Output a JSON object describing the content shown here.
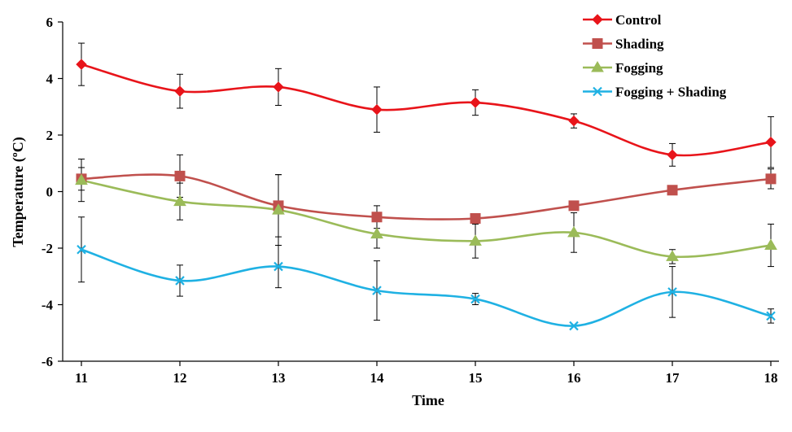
{
  "chart_data": {
    "type": "line",
    "title": "",
    "xlabel": "Time",
    "ylabel": "Temperature (ºC)",
    "x": [
      11,
      12,
      13,
      14,
      15,
      16,
      17,
      18
    ],
    "xlim": [
      11,
      18
    ],
    "ylim": [
      -6,
      6
    ],
    "yticks": [
      6,
      4,
      2,
      0,
      -2,
      -4,
      -6
    ],
    "xticks": [
      11,
      12,
      13,
      14,
      15,
      16,
      17,
      18
    ],
    "grid": false,
    "legend_position": "top-right",
    "series": [
      {
        "name": "Control",
        "color": "#e8141a",
        "marker": "diamond",
        "values": [
          4.5,
          3.55,
          3.7,
          2.9,
          3.15,
          2.5,
          1.3,
          1.75
        ],
        "errors": [
          0.75,
          0.6,
          0.65,
          0.8,
          0.45,
          0.25,
          0.4,
          0.9
        ]
      },
      {
        "name": "Shading",
        "color": "#c0504d",
        "marker": "square",
        "values": [
          0.45,
          0.55,
          -0.5,
          -0.9,
          -0.95,
          -0.5,
          0.05,
          0.45
        ],
        "errors": [
          0.4,
          0.75,
          1.1,
          0.4,
          0.15,
          0.0,
          0.0,
          0.35
        ]
      },
      {
        "name": "Fogging",
        "color": "#9bbb59",
        "marker": "triangle",
        "values": [
          0.4,
          -0.35,
          -0.65,
          -1.5,
          -1.75,
          -1.45,
          -2.3,
          -1.9
        ],
        "errors": [
          0.75,
          0.65,
          1.25,
          0.5,
          0.6,
          0.7,
          0.25,
          0.75
        ]
      },
      {
        "name": "Fogging + Shading",
        "color": "#1fb1e3",
        "marker": "x",
        "values": [
          -2.05,
          -3.15,
          -2.65,
          -3.5,
          -3.8,
          -4.75,
          -3.55,
          -4.4
        ],
        "errors": [
          1.15,
          0.55,
          0.75,
          1.05,
          0.2,
          0.0,
          0.9,
          0.25
        ]
      }
    ]
  }
}
